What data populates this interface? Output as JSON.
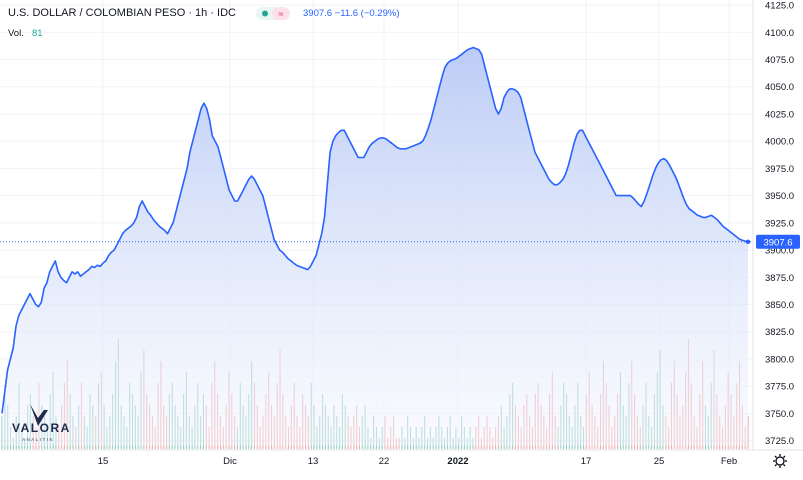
{
  "header": {
    "symbol_title": "U.S. DOLLAR / COLOMBIAN PESO · 1h · IDC",
    "quote": "3907.6 −11.6 (−0.29%)",
    "volume_label": "Vol.",
    "volume_value": "81"
  },
  "logo": {
    "name": "VALORA",
    "tagline": "ANALITIK"
  },
  "last_price_label": "3907.6",
  "settings_icon": "gear-icon",
  "colors": {
    "line": "#2962ff",
    "area_top": "#b8c9f5",
    "area_bottom": "#f3f6fd",
    "vol_up": "#8cc9bd",
    "vol_down": "#f0a8a8",
    "grid": "#f0f3fa",
    "axis_text": "#131722",
    "price_tag": "#2962ff"
  },
  "chart_data": {
    "type": "area",
    "title": "U.S. DOLLAR / COLOMBIAN PESO",
    "interval": "1h",
    "x_tick_labels": [
      "15",
      "Dic",
      "13",
      "22",
      "2022",
      "17",
      "25",
      "Feb"
    ],
    "y_tick_labels": [
      "3725.0",
      "3750.0",
      "3775.0",
      "3800.0",
      "3825.0",
      "3850.0",
      "3875.0",
      "3900.0",
      "3925.0",
      "3950.0",
      "3975.0",
      "4000.0",
      "4025.0",
      "4050.0",
      "4075.0",
      "4100.0",
      "4125.0"
    ],
    "ylim": [
      3720,
      4126
    ],
    "grid": true,
    "last_value": 3907.6,
    "change": -11.6,
    "change_pct": -0.29,
    "series": [
      {
        "values": [
          3750,
          3770,
          3790,
          3800,
          3810,
          3830,
          3840,
          3845,
          3850,
          3855,
          3860,
          3855,
          3850,
          3848,
          3852,
          3865,
          3870,
          3880,
          3885,
          3890,
          3880,
          3875,
          3872,
          3870,
          3875,
          3880,
          3878,
          3880,
          3876,
          3878,
          3880,
          3882,
          3885,
          3884,
          3886,
          3885,
          3888,
          3890,
          3895,
          3898,
          3900,
          3905,
          3910,
          3915,
          3918,
          3920,
          3922,
          3925,
          3930,
          3940,
          3945,
          3940,
          3935,
          3932,
          3928,
          3925,
          3922,
          3920,
          3918,
          3915,
          3920,
          3925,
          3935,
          3945,
          3955,
          3965,
          3975,
          3990,
          4000,
          4010,
          4020,
          4030,
          4035,
          4030,
          4020,
          4005,
          4000,
          3995,
          3985,
          3975,
          3965,
          3955,
          3950,
          3945,
          3945,
          3950,
          3955,
          3960,
          3965,
          3968,
          3965,
          3960,
          3955,
          3950,
          3940,
          3930,
          3920,
          3910,
          3905,
          3900,
          3898,
          3895,
          3892,
          3890,
          3888,
          3886,
          3885,
          3884,
          3883,
          3882,
          3885,
          3890,
          3895,
          3905,
          3915,
          3930,
          3960,
          3990,
          4000,
          4005,
          4008,
          4010,
          4010,
          4005,
          4000,
          3995,
          3990,
          3985,
          3985,
          3985,
          3990,
          3995,
          3998,
          4000,
          4002,
          4003,
          4003,
          4002,
          4000,
          3998,
          3996,
          3994,
          3993,
          3993,
          3993,
          3994,
          3995,
          3996,
          3997,
          3998,
          4000,
          4005,
          4012,
          4020,
          4030,
          4040,
          4050,
          4060,
          4068,
          4072,
          4074,
          4075,
          4076,
          4078,
          4080,
          4082,
          4084,
          4085,
          4086,
          4085,
          4084,
          4080,
          4070,
          4060,
          4050,
          4040,
          4030,
          4025,
          4030,
          4040,
          4045,
          4048,
          4048,
          4047,
          4045,
          4040,
          4030,
          4020,
          4010,
          4000,
          3990,
          3985,
          3980,
          3975,
          3970,
          3965,
          3962,
          3960,
          3960,
          3962,
          3965,
          3970,
          3978,
          3988,
          3998,
          4006,
          4010,
          4010,
          4005,
          4000,
          3995,
          3990,
          3985,
          3980,
          3975,
          3970,
          3965,
          3960,
          3955,
          3950,
          3950,
          3950,
          3950,
          3950,
          3950,
          3948,
          3945,
          3942,
          3940,
          3945,
          3952,
          3960,
          3968,
          3975,
          3980,
          3983,
          3984,
          3982,
          3978,
          3973,
          3968,
          3962,
          3955,
          3948,
          3942,
          3938,
          3936,
          3934,
          3932,
          3931,
          3930,
          3930,
          3931,
          3932,
          3930,
          3928,
          3925,
          3922,
          3920,
          3918,
          3916,
          3914,
          3912,
          3910,
          3909,
          3908,
          3907.6
        ]
      }
    ],
    "volume": [
      3,
      5,
      4,
      2,
      1,
      3,
      6,
      2,
      1,
      4,
      5,
      3,
      2,
      6,
      4,
      3,
      2,
      5,
      7,
      3,
      2,
      4,
      6,
      8,
      5,
      3,
      2,
      4,
      6,
      3,
      2,
      5,
      4,
      3,
      6,
      7,
      4,
      2,
      3,
      5,
      8,
      10,
      4,
      3,
      2,
      6,
      5,
      4,
      3,
      7,
      9,
      5,
      4,
      3,
      2,
      6,
      8,
      4,
      3,
      5,
      6,
      4,
      3,
      2,
      5,
      7,
      3,
      2,
      4,
      6,
      3,
      5,
      4,
      2,
      6,
      8,
      5,
      3,
      2,
      4,
      7,
      5,
      3,
      2,
      6,
      4,
      3,
      5,
      8,
      6,
      4,
      2,
      3,
      5,
      7,
      4,
      3,
      6,
      9,
      5,
      3,
      2,
      4,
      6,
      3,
      2,
      5,
      4,
      3,
      6,
      4,
      2,
      3,
      5,
      4,
      3,
      2,
      4,
      3,
      2,
      5,
      4,
      3,
      2,
      3,
      4,
      2,
      3,
      4,
      2,
      1,
      3,
      2,
      1,
      2,
      3,
      1,
      2,
      3,
      1,
      1,
      2,
      1,
      3,
      2,
      1,
      2,
      1,
      2,
      3,
      1,
      2,
      1,
      2,
      3,
      2,
      1,
      2,
      3,
      1,
      2,
      1,
      3,
      2,
      1,
      2,
      1,
      2,
      3,
      1,
      2,
      3,
      2,
      1,
      2,
      3,
      4,
      2,
      3,
      5,
      6,
      4,
      3,
      2,
      4,
      5,
      3,
      2,
      5,
      6,
      4,
      3,
      2,
      5,
      7,
      3,
      2,
      4,
      6,
      5,
      3,
      2,
      4,
      6,
      3,
      2,
      5,
      7,
      4,
      3,
      2,
      5,
      8,
      6,
      4,
      2,
      3,
      5,
      7,
      4,
      3,
      6,
      8,
      5,
      3,
      2,
      4,
      6,
      3,
      2,
      5,
      7,
      9,
      4,
      3,
      2,
      6,
      8,
      5,
      3,
      4,
      7,
      10,
      6,
      3,
      2,
      5,
      8,
      4,
      3,
      6,
      9,
      5,
      3,
      2,
      4,
      7,
      5,
      3,
      6,
      8,
      4,
      2,
      3
    ]
  }
}
